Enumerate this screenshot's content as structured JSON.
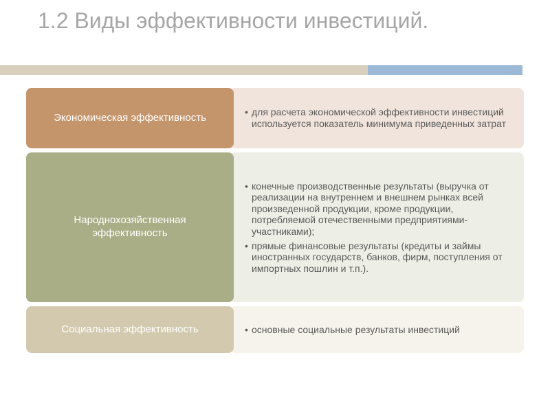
{
  "title": "1.2 Виды эффективности инвестиций.",
  "underline_colors": {
    "beige": "#d8d0bc",
    "blue": "#9bb9d6"
  },
  "rows": [
    {
      "label": "Экономическая эффективность",
      "label_bg": "#c4946a",
      "desc_bg": "#f1e4dc",
      "bullets": [
        "для расчета экономической эффективности инвестиций используется показатель минимума приведенных затрат"
      ]
    },
    {
      "label": "Народнохозяйственная эффективность",
      "label_bg": "#a9ae86",
      "desc_bg": "#edeee5",
      "bullets": [
        "конечные производственные результаты (выручка от реализации на внутреннем и внешнем рынках всей произведенной продукции, кроме продукции, потребляемой отечественными предприятиями-участниками);",
        "прямые финансовые результаты (кредиты и займы иностранных государств, банков, фирм, поступления от импортных пошлин и т.п.)."
      ]
    },
    {
      "label": "Социальная эффективность",
      "label_bg": "#d3c9af",
      "desc_bg": "#f6f3ec",
      "bullets": [
        "основные социальные результаты инвестиций"
      ]
    }
  ]
}
